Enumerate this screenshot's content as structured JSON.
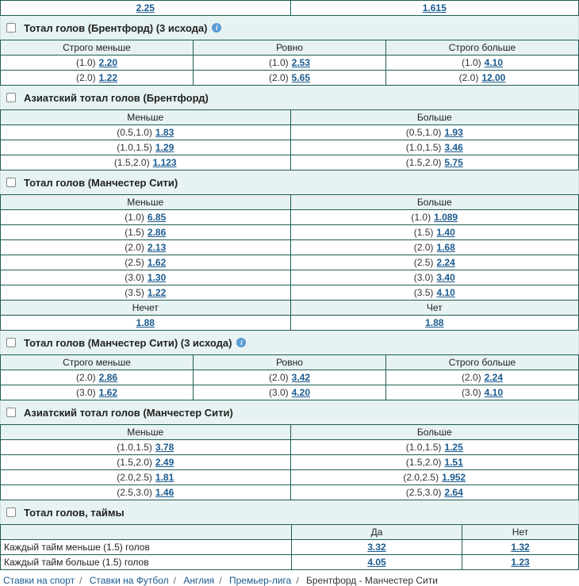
{
  "top_row": {
    "left": "2.25",
    "right": "1.615"
  },
  "sec1": {
    "title": "Тотал голов (Брентфорд) (3 исхода)",
    "headers": [
      "Строго меньше",
      "Ровно",
      "Строго больше"
    ],
    "rows": [
      [
        {
          "h": "(1.0)",
          "v": "2.20"
        },
        {
          "h": "(1.0)",
          "v": "2.53"
        },
        {
          "h": "(1.0)",
          "v": "4.10"
        }
      ],
      [
        {
          "h": "(2.0)",
          "v": "1.22"
        },
        {
          "h": "(2.0)",
          "v": "5.65"
        },
        {
          "h": "(2.0)",
          "v": "12.00"
        }
      ]
    ]
  },
  "sec2": {
    "title": "Азиатский тотал голов (Брентфорд)",
    "headers": [
      "Меньше",
      "Больше"
    ],
    "rows": [
      [
        {
          "h": "(0.5,1.0)",
          "v": "1.83"
        },
        {
          "h": "(0.5,1.0)",
          "v": "1.93"
        }
      ],
      [
        {
          "h": "(1.0,1.5)",
          "v": "1.29"
        },
        {
          "h": "(1.0,1.5)",
          "v": "3.46"
        }
      ],
      [
        {
          "h": "(1.5,2.0)",
          "v": "1.123"
        },
        {
          "h": "(1.5,2.0)",
          "v": "5.75"
        }
      ]
    ]
  },
  "sec3": {
    "title": "Тотал голов (Манчестер Сити)",
    "headers": [
      "Меньше",
      "Больше"
    ],
    "rows": [
      [
        {
          "h": "(1.0)",
          "v": "6.85"
        },
        {
          "h": "(1.0)",
          "v": "1.089"
        }
      ],
      [
        {
          "h": "(1.5)",
          "v": "2.86"
        },
        {
          "h": "(1.5)",
          "v": "1.40"
        }
      ],
      [
        {
          "h": "(2.0)",
          "v": "2.13"
        },
        {
          "h": "(2.0)",
          "v": "1.68"
        }
      ],
      [
        {
          "h": "(2.5)",
          "v": "1.62"
        },
        {
          "h": "(2.5)",
          "v": "2.24"
        }
      ],
      [
        {
          "h": "(3.0)",
          "v": "1.30"
        },
        {
          "h": "(3.0)",
          "v": "3.40"
        }
      ],
      [
        {
          "h": "(3.5)",
          "v": "1.22"
        },
        {
          "h": "(3.5)",
          "v": "4.10"
        }
      ]
    ],
    "parity_headers": [
      "Нечет",
      "Чет"
    ],
    "parity_values": [
      "1.88",
      "1.88"
    ]
  },
  "sec4": {
    "title": "Тотал голов (Манчестер Сити) (3 исхода)",
    "headers": [
      "Строго меньше",
      "Ровно",
      "Строго больше"
    ],
    "rows": [
      [
        {
          "h": "(2.0)",
          "v": "2.86"
        },
        {
          "h": "(2.0)",
          "v": "3.42"
        },
        {
          "h": "(2.0)",
          "v": "2.24"
        }
      ],
      [
        {
          "h": "(3.0)",
          "v": "1.62"
        },
        {
          "h": "(3.0)",
          "v": "4.20"
        },
        {
          "h": "(3.0)",
          "v": "4.10"
        }
      ]
    ]
  },
  "sec5": {
    "title": "Азиатский тотал голов (Манчестер Сити)",
    "headers": [
      "Меньше",
      "Больше"
    ],
    "rows": [
      [
        {
          "h": "(1.0,1.5)",
          "v": "3.78"
        },
        {
          "h": "(1.0,1.5)",
          "v": "1.25"
        }
      ],
      [
        {
          "h": "(1.5,2.0)",
          "v": "2.49"
        },
        {
          "h": "(1.5,2.0)",
          "v": "1.51"
        }
      ],
      [
        {
          "h": "(2.0,2.5)",
          "v": "1.81"
        },
        {
          "h": "(2.0,2.5)",
          "v": "1.952"
        }
      ],
      [
        {
          "h": "(2.5,3.0)",
          "v": "1.46"
        },
        {
          "h": "(2.5,3.0)",
          "v": "2.64"
        }
      ]
    ]
  },
  "sec6": {
    "title": "Тотал голов, таймы",
    "headers": [
      "Да",
      "Нет"
    ],
    "rows": [
      {
        "label": "Каждый тайм меньше (1.5) голов",
        "yes": "3.32",
        "no": "1.32"
      },
      {
        "label": "Каждый тайм больше (1.5) голов",
        "yes": "4.05",
        "no": "1.23"
      }
    ]
  },
  "breadcrumbs": [
    "Ставки на спорт",
    "Ставки на Футбол",
    "Англия",
    "Премьер-лига",
    "Брентфорд - Манчестер Сити"
  ],
  "colors": {
    "border": "#1f5d55",
    "header_bg": "#e7f2f2",
    "link": "#1a5a8f",
    "info_icon": "#5b9bd5"
  }
}
